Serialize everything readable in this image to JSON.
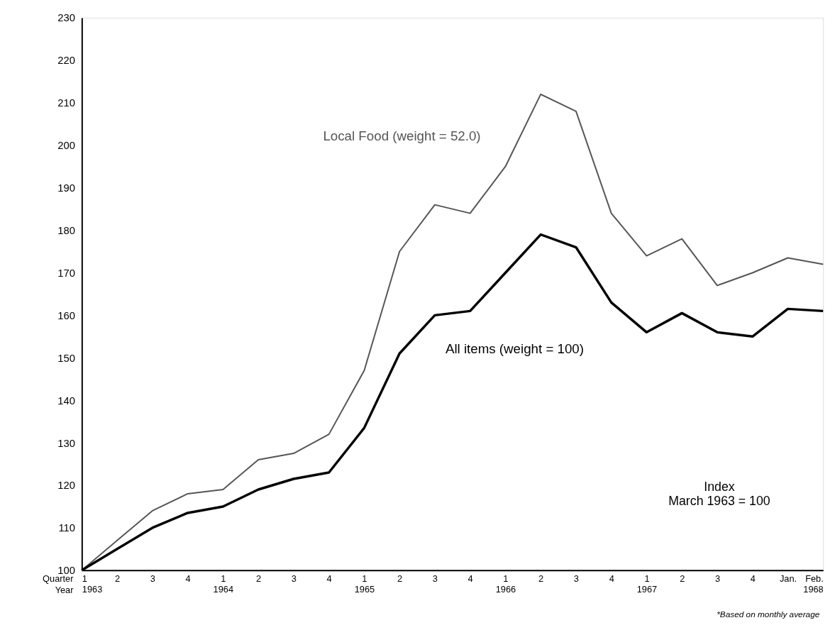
{
  "chart_data": {
    "type": "line",
    "categories": [
      "1\n1963",
      "2",
      "3",
      "4",
      "1\n1964",
      "2",
      "3",
      "4",
      "1\n1965",
      "2",
      "3",
      "4",
      "1\n1966",
      "2",
      "3",
      "4",
      "1\n1967",
      "2",
      "3",
      "4",
      "Jan.",
      "Feb.\n1968"
    ],
    "xlabel": "Quarter\nYear",
    "series": [
      {
        "name": "Local Food (weight = 52.0)",
        "color": "#555555",
        "values": [
          100,
          107,
          114,
          118,
          119,
          126,
          127.5,
          132,
          147,
          175,
          186,
          184,
          195,
          212,
          208,
          184,
          174,
          178,
          167,
          170,
          173.5,
          172
        ]
      },
      {
        "name": "All items (weight = 100)",
        "color": "#000000",
        "values": [
          100,
          105,
          110,
          113.5,
          115,
          119,
          121.5,
          123,
          133.5,
          151,
          160,
          161,
          170,
          179,
          176,
          163,
          156,
          160.5,
          156,
          155,
          161.5,
          161
        ]
      }
    ],
    "ylim": [
      100,
      230
    ],
    "yticks": [
      100,
      110,
      120,
      130,
      140,
      150,
      160,
      170,
      180,
      190,
      200,
      210,
      220,
      230
    ],
    "grid": false,
    "marker": "none",
    "line_style": "solid",
    "annotations": [
      "Index\nMarch 1963 = 100",
      "*Based on monthly average"
    ]
  }
}
